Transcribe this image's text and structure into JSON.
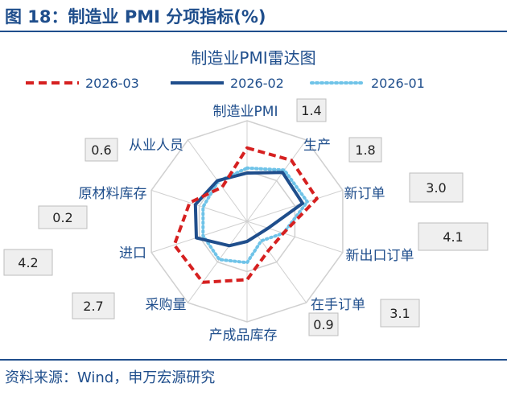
{
  "header": {
    "title": "图 18：制造业 PMI 分项指标(%)"
  },
  "source": "资料来源：Wind，申万宏源研究",
  "colors": {
    "brand": "#1f4e8c",
    "grid": "#d0d0d0",
    "box_fill": "#efefef",
    "box_border": "#bdbdbd"
  },
  "chart_data": {
    "type": "radar",
    "title": "制造业PMI雷达图",
    "axes": [
      "制造业PMI",
      "生产",
      "新订单",
      "新出口订单",
      "在手订单",
      "产成品库存",
      "采购量",
      "进口",
      "原材料库存",
      "从业人员"
    ],
    "range": [
      0,
      10
    ],
    "grid": true,
    "grid_levels": 2,
    "legend_position": "top",
    "series": [
      {
        "name": "2026-03",
        "color": "#d62020",
        "style": "dashed",
        "values": [
          7.3,
          7.5,
          7.3,
          3.8,
          3.6,
          5.8,
          7.5,
          7.6,
          6.0,
          4.2
        ]
      },
      {
        "name": "2026-02",
        "color": "#1f4e8c",
        "style": "solid",
        "values": [
          4.8,
          6.0,
          5.8,
          2.2,
          1.7,
          2.0,
          3.0,
          5.3,
          5.4,
          5.0
        ]
      },
      {
        "name": "2026-01",
        "color": "#6fc3e8",
        "style": "dotted",
        "values": [
          5.3,
          6.3,
          6.3,
          3.8,
          2.4,
          4.1,
          4.7,
          4.6,
          4.6,
          4.9
        ]
      }
    ],
    "annotations": [
      "1.4",
      "1.8",
      "3.0",
      "4.1",
      "3.1",
      "0.9",
      "2.7",
      "4.2",
      "0.2",
      "0.6"
    ]
  }
}
